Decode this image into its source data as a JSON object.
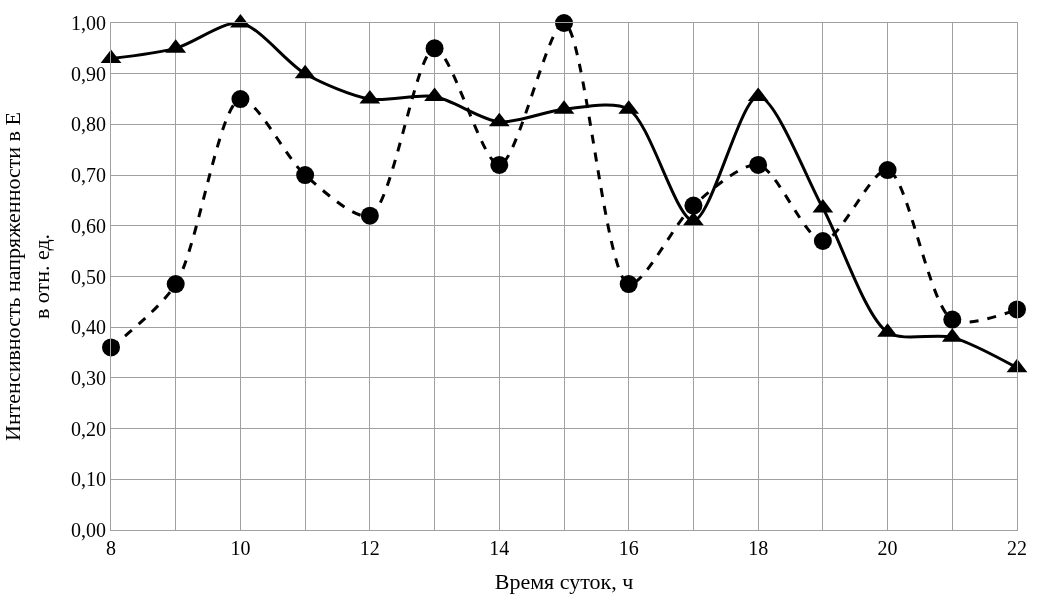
{
  "chart_data": {
    "type": "line",
    "xlabel": "Время суток, ч",
    "ylabel": "Интенсивность напряженности в E\nв отн. ед.",
    "x": [
      8,
      9,
      10,
      11,
      12,
      13,
      14,
      15,
      16,
      17,
      18,
      19,
      20,
      21,
      22
    ],
    "series": [
      {
        "color": "#000000",
        "marker": "triangle",
        "line_style": "solid",
        "values": [
          0.93,
          0.95,
          1.0,
          0.9,
          0.85,
          0.855,
          0.805,
          0.83,
          0.83,
          0.61,
          0.855,
          0.635,
          0.39,
          0.38,
          0.32
        ]
      },
      {
        "color": "#000000",
        "marker": "circle",
        "line_style": "dashed",
        "values": [
          0.36,
          0.485,
          0.85,
          0.7,
          0.62,
          0.95,
          0.72,
          1.0,
          0.485,
          0.64,
          0.72,
          0.57,
          0.71,
          0.415,
          0.435
        ]
      }
    ],
    "xlim": [
      8,
      22
    ],
    "xticks": [
      8,
      {
        "value": 9,
        "label": null
      },
      10,
      {
        "value": 11,
        "label": null
      },
      12,
      {
        "value": 13,
        "label": null
      },
      14,
      {
        "value": 15,
        "label": null
      },
      16,
      {
        "value": 17,
        "label": null
      },
      18,
      {
        "value": 19,
        "label": null
      },
      20,
      {
        "value": 21,
        "label": null
      },
      22
    ],
    "ylim": [
      0,
      1
    ],
    "yticks": [
      {
        "value": 0,
        "label": "0,00"
      },
      {
        "value": 0.1,
        "label": "0,10"
      },
      {
        "value": 0.2,
        "label": "0,20"
      },
      {
        "value": 0.3,
        "label": "0,30"
      },
      {
        "value": 0.4,
        "label": "0,40"
      },
      {
        "value": 0.5,
        "label": "0,50"
      },
      {
        "value": 0.6,
        "label": "0,60"
      },
      {
        "value": 0.7,
        "label": "0,70"
      },
      {
        "value": 0.8,
        "label": "0,80"
      },
      {
        "value": 0.9,
        "label": "0,90"
      },
      {
        "value": 1.0,
        "label": "1,00"
      }
    ],
    "grid": true
  }
}
